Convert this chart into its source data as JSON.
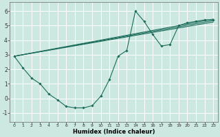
{
  "xlabel": "Humidex (Indice chaleur)",
  "bg_color": "#cce8e0",
  "grid_color": "#ffffff",
  "line_color": "#1a6b5a",
  "xlim": [
    -0.5,
    23.5
  ],
  "ylim": [
    -1.6,
    6.6
  ],
  "xticks": [
    0,
    1,
    2,
    3,
    4,
    5,
    6,
    7,
    8,
    9,
    10,
    11,
    12,
    13,
    14,
    15,
    16,
    17,
    18,
    19,
    20,
    21,
    22,
    23
  ],
  "yticks": [
    -1,
    0,
    1,
    2,
    3,
    4,
    5,
    6
  ],
  "main_line": {
    "x": [
      0,
      1,
      2,
      3,
      4,
      5,
      6,
      7,
      8,
      9,
      10,
      11,
      12,
      13,
      14,
      15,
      16,
      17,
      18,
      19,
      20,
      21,
      22,
      23
    ],
    "y": [
      2.9,
      2.1,
      1.4,
      1.0,
      0.3,
      -0.1,
      -0.55,
      -0.65,
      -0.65,
      -0.5,
      0.15,
      1.3,
      2.9,
      3.3,
      6.0,
      5.3,
      4.4,
      3.6,
      3.7,
      5.0,
      5.2,
      5.3,
      5.4,
      5.4
    ]
  },
  "trend_lines": [
    {
      "x": [
        0,
        23
      ],
      "y": [
        2.9,
        5.35
      ]
    },
    {
      "x": [
        0,
        23
      ],
      "y": [
        2.9,
        5.45
      ]
    },
    {
      "x": [
        0,
        23
      ],
      "y": [
        2.9,
        5.25
      ]
    }
  ]
}
